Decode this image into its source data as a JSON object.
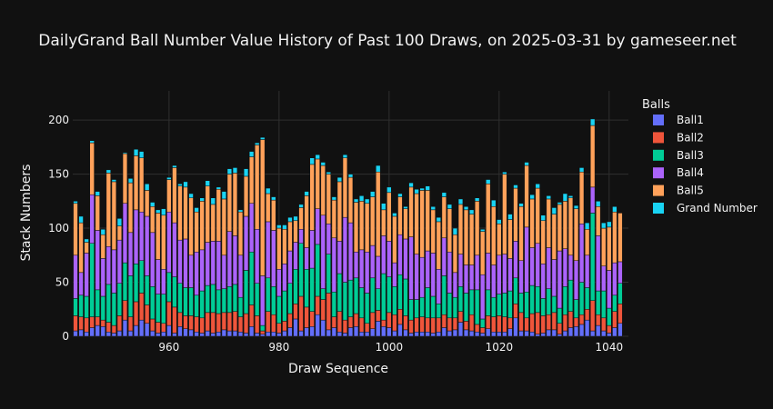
{
  "chart_data": {
    "type": "bar",
    "stacked": true,
    "title": "DailyGrand Ball Number Value History of Past 100 Draws, on 2025-03-31 by gameseer.net",
    "xlabel": "Draw Sequence",
    "ylabel": "Stack Numbers",
    "x_ticks": [
      960,
      980,
      1000,
      1020,
      1040
    ],
    "y_ticks": [
      0,
      50,
      100,
      150,
      200
    ],
    "xlim": [
      942.5,
      1043.5
    ],
    "ylim": [
      0,
      227
    ],
    "grid": true,
    "legend_title": "Balls",
    "legend_position": "right",
    "x_start": 943,
    "series": [
      {
        "name": "Ball1",
        "color": "#636EFA",
        "values": [
          5,
          6,
          4,
          8,
          10,
          9,
          4,
          3,
          5,
          15,
          5,
          10,
          15,
          12,
          5,
          3,
          4,
          10,
          3,
          9,
          7,
          6,
          4,
          3,
          5,
          3,
          4,
          6,
          5,
          5,
          4,
          3,
          9,
          3,
          2,
          4,
          4,
          3,
          5,
          8,
          16,
          5,
          8,
          9,
          20,
          15,
          6,
          8,
          4,
          3,
          8,
          9,
          4,
          4,
          7,
          14,
          9,
          8,
          5,
          11,
          6,
          3,
          4,
          4,
          4,
          3,
          4,
          8,
          5,
          6,
          13,
          6,
          5,
          4,
          3,
          7,
          4,
          4,
          4,
          7,
          17,
          5,
          5,
          4,
          2,
          3,
          6,
          6,
          2,
          5,
          8,
          9,
          11,
          15,
          5,
          10,
          5,
          3,
          8,
          12
        ]
      },
      {
        "name": "Ball2",
        "color": "#EF553B",
        "values": [
          14,
          12,
          13,
          10,
          8,
          6,
          9,
          7,
          14,
          18,
          13,
          22,
          25,
          17,
          11,
          10,
          8,
          22,
          24,
          13,
          12,
          13,
          14,
          14,
          17,
          19,
          17,
          16,
          17,
          18,
          14,
          18,
          20,
          16,
          3,
          19,
          16,
          9,
          9,
          13,
          14,
          32,
          19,
          14,
          17,
          19,
          34,
          10,
          19,
          12,
          10,
          12,
          13,
          8,
          15,
          10,
          6,
          14,
          15,
          14,
          13,
          12,
          13,
          14,
          13,
          14,
          13,
          12,
          12,
          11,
          10,
          8,
          15,
          7,
          5,
          12,
          14,
          15,
          14,
          10,
          13,
          17,
          12,
          17,
          20,
          16,
          14,
          16,
          10,
          15,
          15,
          8,
          9,
          10,
          28,
          10,
          12,
          7,
          15,
          18
        ]
      },
      {
        "name": "Ball3",
        "color": "#00CC96",
        "values": [
          16,
          20,
          20,
          68,
          25,
          22,
          35,
          30,
          30,
          35,
          38,
          35,
          30,
          27,
          30,
          26,
          27,
          27,
          28,
          27,
          26,
          26,
          20,
          25,
          25,
          26,
          22,
          22,
          24,
          25,
          18,
          40,
          49,
          30,
          5,
          31,
          26,
          25,
          28,
          28,
          32,
          49,
          35,
          40,
          48,
          10,
          36,
          23,
          35,
          35,
          34,
          33,
          28,
          28,
          32,
          20,
          43,
          33,
          26,
          32,
          34,
          19,
          17,
          18,
          28,
          20,
          13,
          36,
          23,
          19,
          23,
          26,
          23,
          32,
          8,
          24,
          18,
          20,
          22,
          25,
          24,
          18,
          24,
          26,
          24,
          16,
          24,
          15,
          14,
          26,
          29,
          17,
          30,
          20,
          81,
          22,
          25,
          16,
          15,
          19
        ]
      },
      {
        "name": "Ball4",
        "color": "#AB63FA",
        "values": [
          40,
          21,
          40,
          45,
          55,
          35,
          35,
          40,
          40,
          55,
          40,
          50,
          45,
          55,
          50,
          32,
          23,
          56,
          50,
          40,
          45,
          30,
          40,
          38,
          40,
          40,
          45,
          31,
          51,
          45,
          39,
          50,
          45,
          50,
          46,
          52,
          52,
          25,
          25,
          30,
          25,
          13,
          20,
          35,
          33,
          68,
          28,
          50,
          30,
          60,
          53,
          24,
          35,
          38,
          30,
          30,
          35,
          33,
          22,
          37,
          37,
          58,
          42,
          37,
          34,
          40,
          32,
          35,
          38,
          23,
          30,
          26,
          23,
          32,
          41,
          34,
          30,
          36,
          36,
          30,
          34,
          30,
          60,
          35,
          40,
          32,
          38,
          34,
          53,
          35,
          23,
          36,
          54,
          30,
          24,
          51,
          23,
          35,
          30,
          20
        ]
      },
      {
        "name": "Ball5",
        "color": "#FFA15A",
        "values": [
          48,
          46,
          10,
          48,
          32,
          22,
          68,
          63,
          13,
          46,
          46,
          50,
          50,
          24,
          24,
          43,
          50,
          30,
          51,
          50,
          48,
          53,
          37,
          45,
          52,
          34,
          48,
          52,
          53,
          58,
          40,
          37,
          43,
          78,
          126,
          26,
          28,
          38,
          32,
          27,
          20,
          20,
          48,
          61,
          46,
          46,
          46,
          35,
          55,
          55,
          42,
          46,
          45,
          45,
          45,
          78,
          24,
          45,
          43,
          35,
          28,
          46,
          56,
          62,
          56,
          40,
          44,
          38,
          40,
          35,
          46,
          51,
          47,
          50,
          40,
          64,
          54,
          29,
          74,
          36,
          49,
          50,
          57,
          45,
          51,
          40,
          45,
          42,
          43,
          44,
          53,
          48,
          48,
          24,
          57,
          27,
          35,
          40,
          47,
          45
        ]
      },
      {
        "name": "Grand Number",
        "color": "#19D3F3",
        "values": [
          2,
          6,
          3,
          2,
          4,
          5,
          3,
          2,
          7,
          1,
          4,
          6,
          6,
          6,
          4,
          3,
          6,
          2,
          2,
          2,
          5,
          4,
          4,
          3,
          5,
          6,
          2,
          7,
          5,
          5,
          2,
          7,
          5,
          2,
          2,
          5,
          3,
          3,
          4,
          4,
          4,
          3,
          4,
          6,
          4,
          3,
          2,
          3,
          4,
          3,
          3,
          3,
          5,
          4,
          5,
          6,
          6,
          5,
          3,
          3,
          2,
          4,
          4,
          2,
          4,
          3,
          4,
          4,
          4,
          6,
          5,
          3,
          4,
          3,
          2,
          4,
          6,
          4,
          2,
          5,
          3,
          3,
          3,
          4,
          4,
          5,
          3,
          6,
          2,
          7,
          2,
          3,
          4,
          6,
          6,
          5,
          5,
          5,
          5,
          0
        ]
      }
    ]
  }
}
